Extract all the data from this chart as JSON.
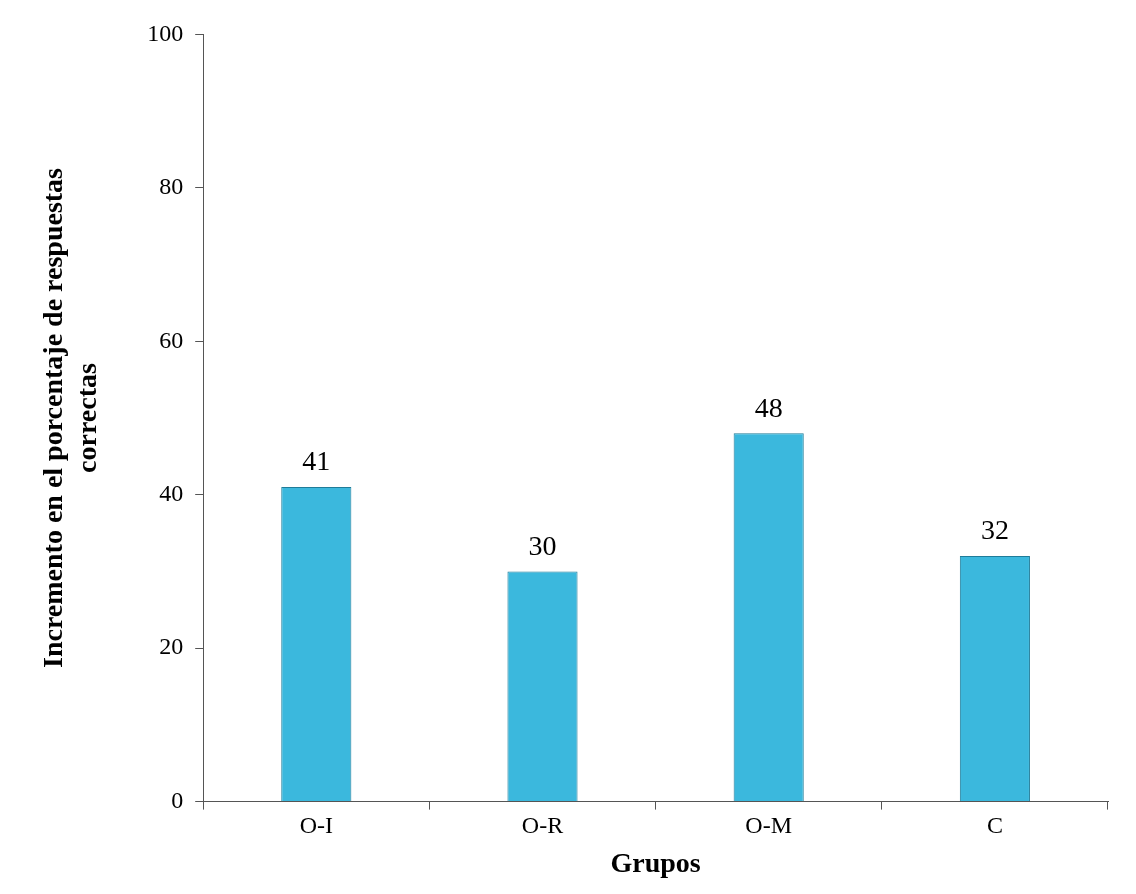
{
  "chart_data": {
    "type": "bar",
    "xlabel": "Grupos",
    "ylabel": "Incremento en el porcentaje de respuestas correctas",
    "categories": [
      "O-I",
      "O-R",
      "O-M",
      "C"
    ],
    "values": [
      41,
      30,
      48,
      32
    ],
    "color": "#3bb8dd",
    "ylim": [
      0,
      100
    ],
    "yticks": [
      0,
      20,
      40,
      60,
      80,
      100
    ],
    "grid": false,
    "legend": false,
    "data_labels": true
  }
}
